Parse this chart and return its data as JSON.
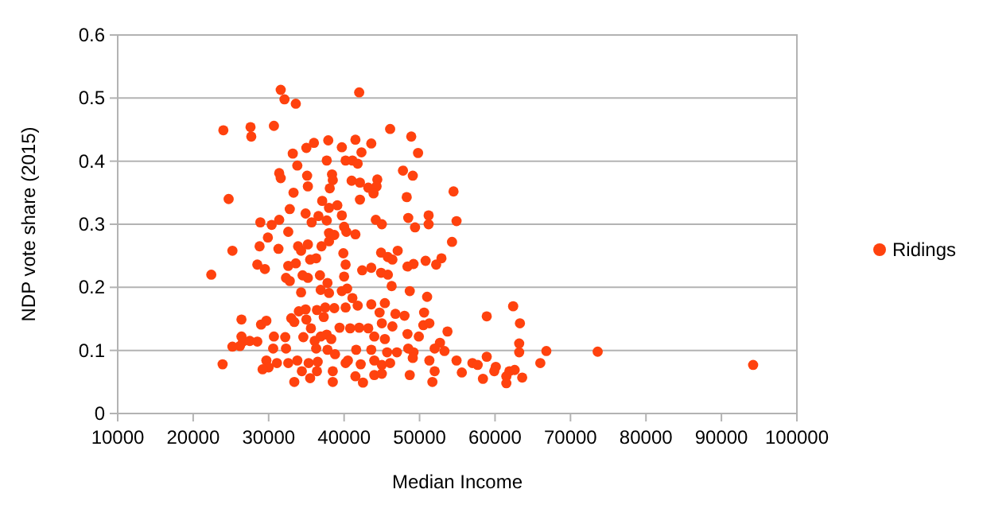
{
  "chart_data": {
    "type": "scatter",
    "xlabel": "Median Income",
    "ylabel": "NDP vote share (2015)",
    "xlim": [
      10000,
      100000
    ],
    "xticks": [
      10000,
      20000,
      30000,
      40000,
      50000,
      60000,
      70000,
      80000,
      90000,
      100000
    ],
    "ylim": [
      0,
      0.6
    ],
    "yticks": [
      0,
      0.1,
      0.2,
      0.3,
      0.4,
      0.5,
      0.6
    ],
    "grid": "y",
    "legend": "right",
    "marker": "circle",
    "series": [
      {
        "name": "Ridings",
        "color": "#ff420e",
        "x": [
          31600,
          32100,
          33600,
          42000,
          24000,
          27600,
          27700,
          30700,
          33200,
          35000,
          36000,
          37900,
          39700,
          41500,
          42300,
          37700,
          40200,
          41100,
          41800,
          31400,
          31600,
          33800,
          35100,
          35200,
          38400,
          38500,
          38100,
          41000,
          42100,
          24700,
          33300,
          32800,
          34900,
          37100,
          38000,
          39100,
          39700,
          42100,
          28900,
          30400,
          31400,
          32600,
          35700,
          36600,
          37700,
          38000,
          40000,
          40300,
          41500,
          29900,
          28800,
          25200,
          31300,
          33900,
          34300,
          35200,
          35500,
          36300,
          37000,
          38000,
          38700,
          39900,
          40200,
          28500,
          29500,
          32600,
          33600,
          34500,
          32300,
          22400,
          32800,
          35200,
          36800,
          37800,
          40000,
          34300,
          36900,
          38000,
          39700,
          40400,
          41100,
          42400,
          34000,
          34900,
          36400,
          37500,
          38700,
          33000,
          35000,
          37300,
          40200,
          41800,
          26400,
          29000,
          29700,
          33400,
          35600,
          39400,
          40800,
          42000,
          26400,
          26600,
          25200,
          26200,
          27500,
          28500,
          30700,
          32200,
          34600,
          36100,
          36900,
          37700,
          38300,
          32300,
          30600,
          36300,
          37800,
          38800,
          41600,
          23900,
          29700,
          30000,
          29200,
          31100,
          32600,
          33800,
          34400,
          35300,
          36500,
          36400,
          38500,
          40200,
          40500,
          42200,
          33400,
          35500,
          38500,
          41500,
          42500,
          46100,
          48900,
          49800,
          43600,
          47800,
          49100,
          44400,
          43200,
          44300,
          43900,
          54500,
          48300,
          48500,
          51200,
          51200,
          49400,
          54900,
          44200,
          45000,
          54300,
          44900,
          47100,
          45800,
          46400,
          48400,
          49200,
          50800,
          52900,
          52200,
          43600,
          44900,
          45800,
          46300,
          48700,
          51000,
          43600,
          44700,
          45400,
          46800,
          48000,
          50600,
          58900,
          62400,
          63300,
          43200,
          45000,
          46400,
          50500,
          51300,
          53700,
          48400,
          49900,
          44000,
          45400,
          52700,
          52000,
          53300,
          63200,
          63200,
          66800,
          43600,
          45700,
          48500,
          49200,
          47000,
          44000,
          45000,
          46100,
          49100,
          51300,
          54900,
          57000,
          57700,
          58900,
          60100,
          61900,
          62600,
          66000,
          44000,
          45000,
          48700,
          52000,
          51700,
          55600,
          58400,
          59900,
          61500,
          61500,
          63600,
          73600,
          94200
        ],
        "values": [
          0.513,
          0.498,
          0.491,
          0.509,
          0.449,
          0.454,
          0.439,
          0.456,
          0.412,
          0.421,
          0.429,
          0.433,
          0.422,
          0.434,
          0.414,
          0.401,
          0.401,
          0.401,
          0.396,
          0.381,
          0.373,
          0.393,
          0.377,
          0.36,
          0.379,
          0.37,
          0.357,
          0.369,
          0.366,
          0.34,
          0.35,
          0.324,
          0.317,
          0.337,
          0.326,
          0.33,
          0.314,
          0.339,
          0.303,
          0.299,
          0.307,
          0.288,
          0.303,
          0.313,
          0.306,
          0.286,
          0.296,
          0.288,
          0.284,
          0.279,
          0.265,
          0.258,
          0.261,
          0.265,
          0.258,
          0.268,
          0.244,
          0.246,
          0.265,
          0.273,
          0.283,
          0.254,
          0.236,
          0.236,
          0.229,
          0.234,
          0.238,
          0.219,
          0.215,
          0.22,
          0.21,
          0.215,
          0.219,
          0.207,
          0.217,
          0.192,
          0.196,
          0.191,
          0.194,
          0.198,
          0.183,
          0.227,
          0.162,
          0.165,
          0.164,
          0.168,
          0.167,
          0.151,
          0.149,
          0.153,
          0.168,
          0.171,
          0.149,
          0.141,
          0.147,
          0.145,
          0.135,
          0.136,
          0.135,
          0.136,
          0.122,
          0.114,
          0.106,
          0.107,
          0.115,
          0.114,
          0.122,
          0.121,
          0.121,
          0.115,
          0.122,
          0.125,
          0.118,
          0.103,
          0.103,
          0.103,
          0.101,
          0.094,
          0.101,
          0.078,
          0.084,
          0.073,
          0.07,
          0.08,
          0.08,
          0.084,
          0.067,
          0.08,
          0.082,
          0.067,
          0.067,
          0.08,
          0.084,
          0.078,
          0.05,
          0.056,
          0.05,
          0.059,
          0.049,
          0.451,
          0.439,
          0.413,
          0.428,
          0.385,
          0.377,
          0.371,
          0.358,
          0.36,
          0.349,
          0.352,
          0.343,
          0.31,
          0.314,
          0.3,
          0.295,
          0.305,
          0.307,
          0.3,
          0.272,
          0.255,
          0.258,
          0.248,
          0.244,
          0.233,
          0.237,
          0.242,
          0.246,
          0.236,
          0.231,
          0.223,
          0.22,
          0.202,
          0.194,
          0.185,
          0.173,
          0.16,
          0.175,
          0.158,
          0.155,
          0.16,
          0.154,
          0.17,
          0.143,
          0.135,
          0.143,
          0.138,
          0.14,
          0.143,
          0.13,
          0.126,
          0.122,
          0.122,
          0.118,
          0.112,
          0.103,
          0.099,
          0.111,
          0.097,
          0.099,
          0.101,
          0.097,
          0.103,
          0.097,
          0.097,
          0.084,
          0.077,
          0.08,
          0.088,
          0.084,
          0.084,
          0.08,
          0.077,
          0.09,
          0.074,
          0.067,
          0.069,
          0.08,
          0.061,
          0.063,
          0.061,
          0.067,
          0.05,
          0.065,
          0.055,
          0.067,
          0.059,
          0.048,
          0.057,
          0.098,
          0.077
        ]
      }
    ]
  }
}
